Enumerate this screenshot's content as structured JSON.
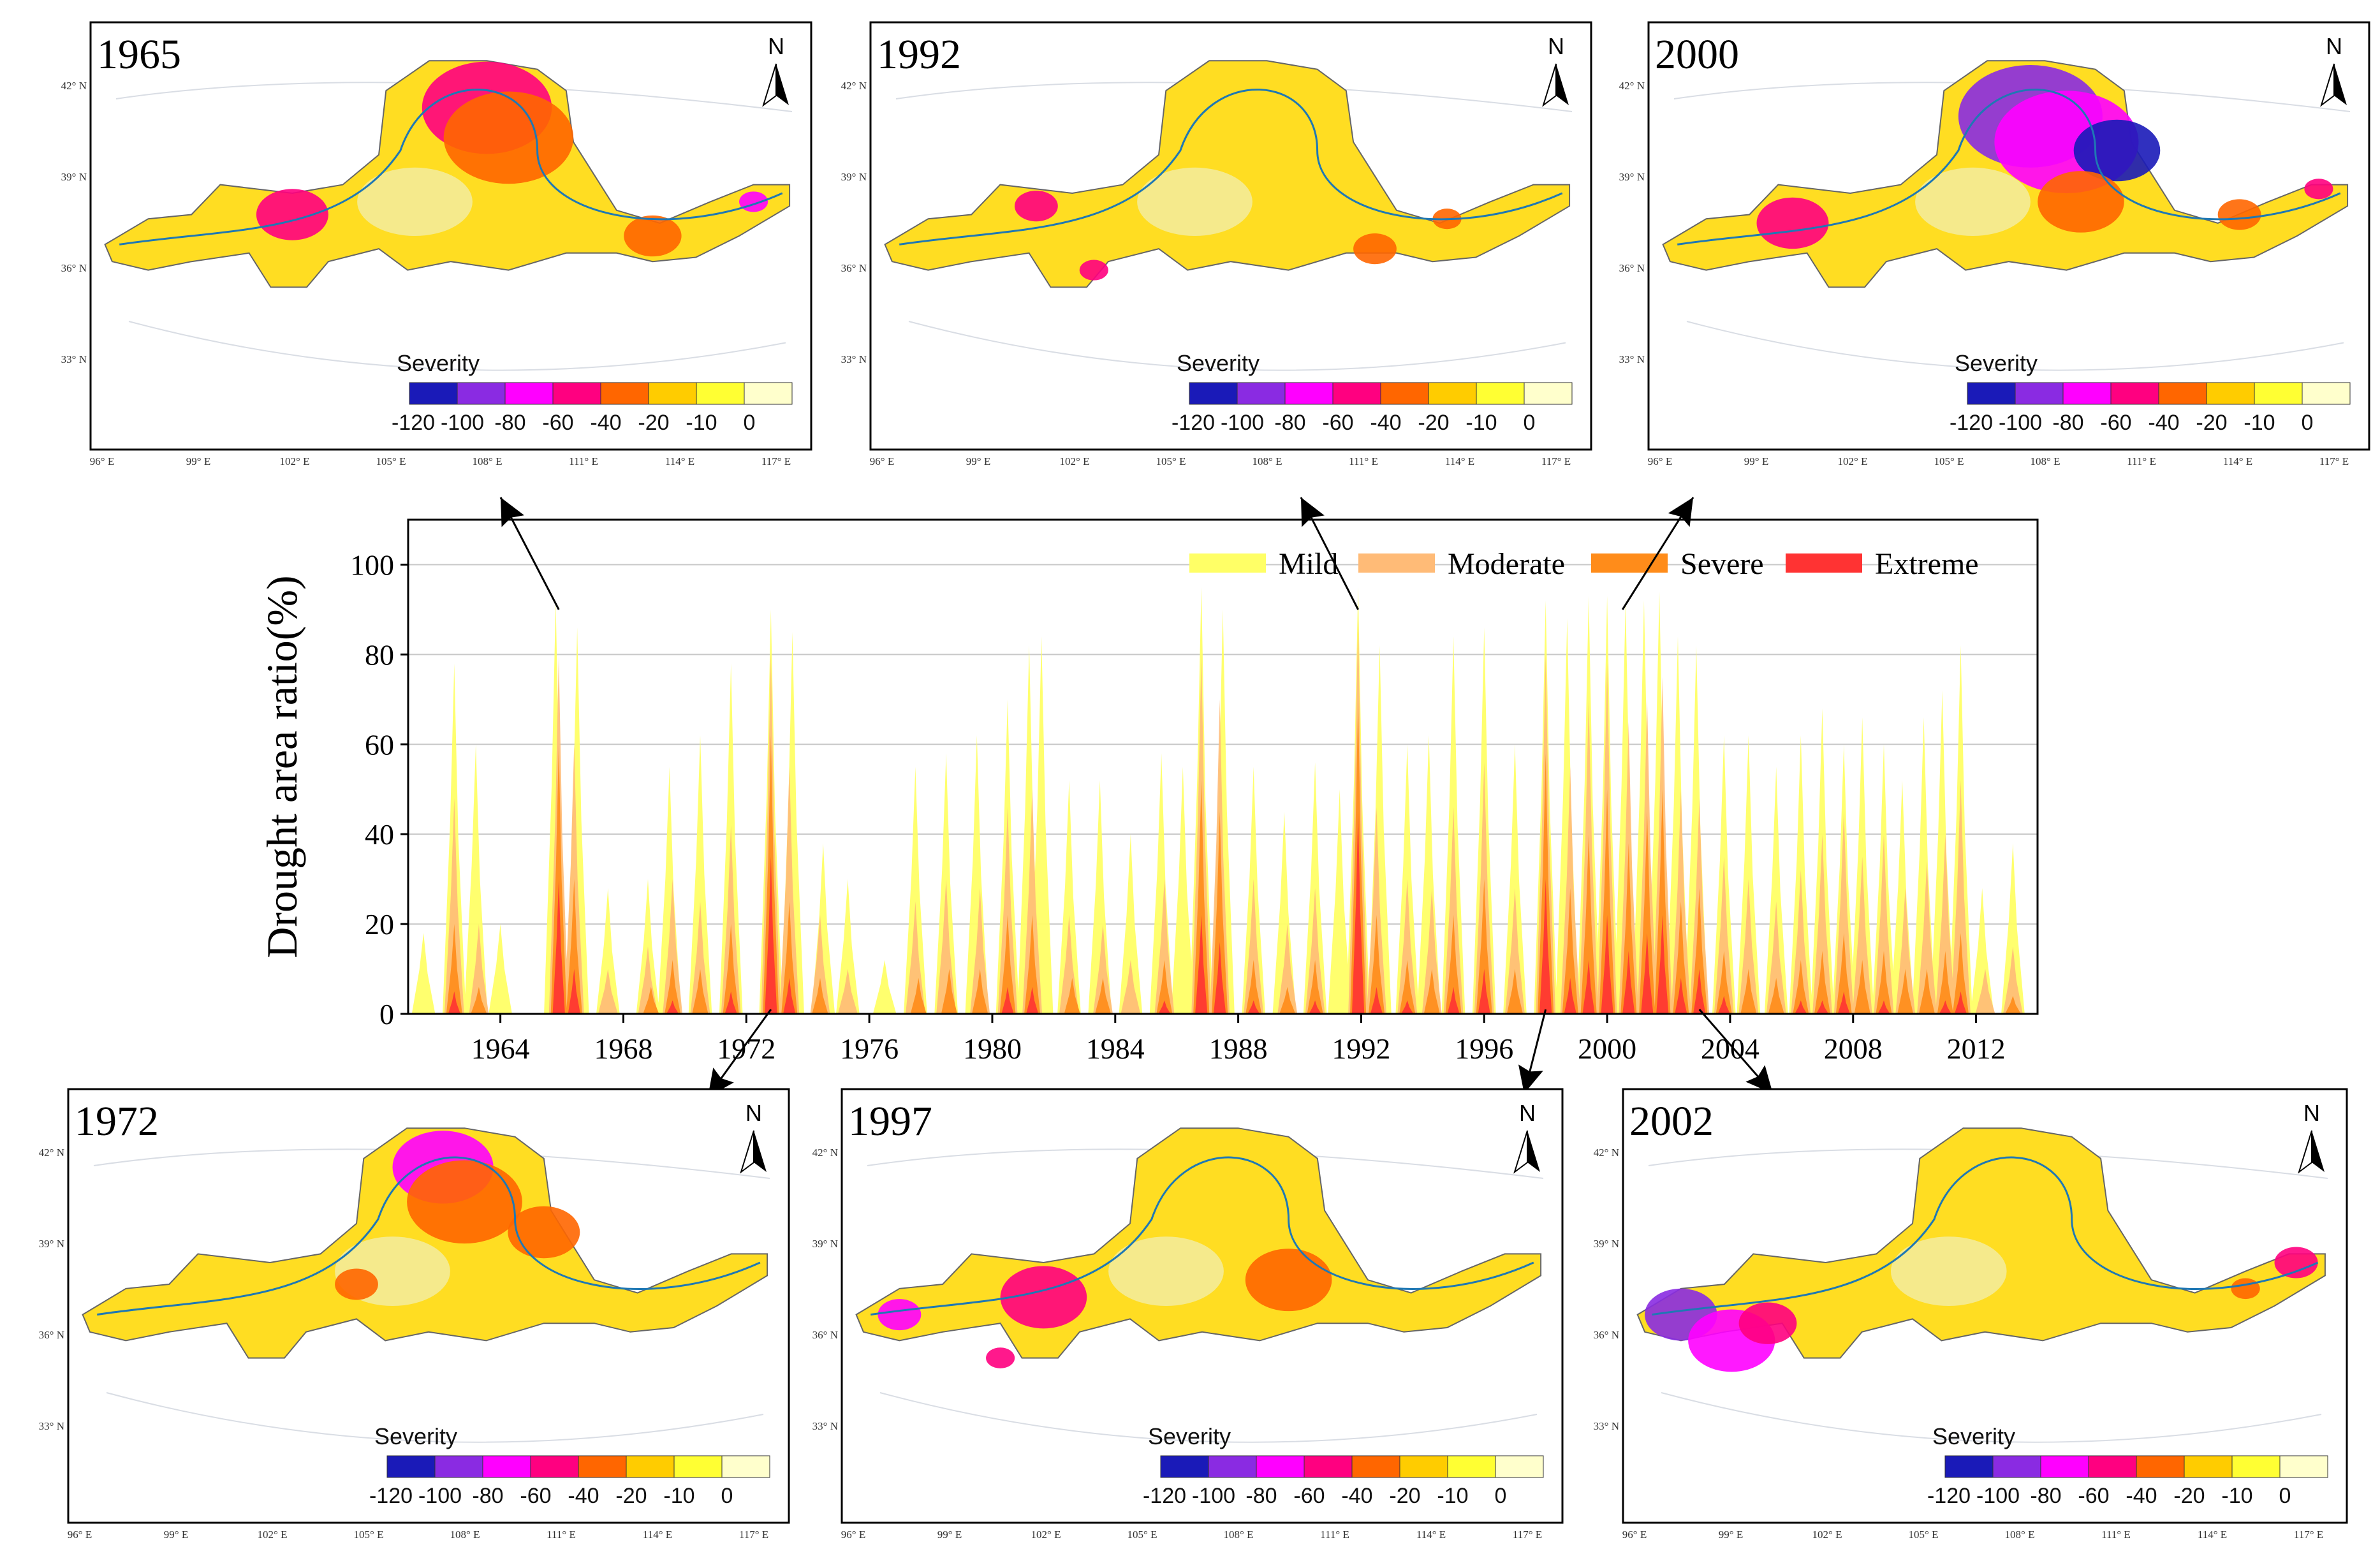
{
  "chart_data": {
    "type": "area",
    "title": "",
    "xlabel": "",
    "ylabel": "Drought area ratio(%)",
    "xlim": [
      1961,
      2014
    ],
    "ylim": [
      0,
      110
    ],
    "y_ticks": [
      "0",
      "20",
      "40",
      "60",
      "80",
      "100"
    ],
    "x_ticks": [
      "1964",
      "1968",
      "1972",
      "1976",
      "1980",
      "1984",
      "1988",
      "1992",
      "1996",
      "2000",
      "2004",
      "2008",
      "2012"
    ],
    "grid": "horizontal",
    "legend_position": "top-right",
    "series": [
      {
        "name": "Mild",
        "color": "#ffff66",
        "peaks": [
          [
            1961.5,
            18
          ],
          [
            1962.5,
            78
          ],
          [
            1963.2,
            60
          ],
          [
            1964.0,
            20
          ],
          [
            1965.8,
            92
          ],
          [
            1966.5,
            86
          ],
          [
            1967.5,
            28
          ],
          [
            1968.8,
            30
          ],
          [
            1969.5,
            55
          ],
          [
            1970.5,
            62
          ],
          [
            1971.5,
            78
          ],
          [
            1972.8,
            90
          ],
          [
            1973.5,
            85
          ],
          [
            1974.5,
            38
          ],
          [
            1975.3,
            30
          ],
          [
            1976.5,
            12
          ],
          [
            1977.5,
            55
          ],
          [
            1978.5,
            58
          ],
          [
            1979.5,
            62
          ],
          [
            1980.5,
            70
          ],
          [
            1981.2,
            82
          ],
          [
            1981.6,
            84
          ],
          [
            1982.5,
            52
          ],
          [
            1983.5,
            52
          ],
          [
            1984.5,
            40
          ],
          [
            1985.5,
            58
          ],
          [
            1986.2,
            55
          ],
          [
            1986.8,
            95
          ],
          [
            1987.5,
            90
          ],
          [
            1988.5,
            55
          ],
          [
            1989.5,
            45
          ],
          [
            1990.5,
            56
          ],
          [
            1991.3,
            50
          ],
          [
            1991.9,
            95
          ],
          [
            1992.6,
            82
          ],
          [
            1993.5,
            60
          ],
          [
            1994.2,
            62
          ],
          [
            1995.0,
            84
          ],
          [
            1996.0,
            86
          ],
          [
            1997.0,
            60
          ],
          [
            1998.0,
            92
          ],
          [
            1998.7,
            88
          ],
          [
            1999.4,
            93
          ],
          [
            2000.0,
            93
          ],
          [
            2000.6,
            92
          ],
          [
            2001.2,
            92
          ],
          [
            2001.7,
            94
          ],
          [
            2002.3,
            84
          ],
          [
            2002.9,
            82
          ],
          [
            2003.8,
            62
          ],
          [
            2004.6,
            62
          ],
          [
            2005.5,
            55
          ],
          [
            2006.3,
            62
          ],
          [
            2007.0,
            68
          ],
          [
            2007.7,
            60
          ],
          [
            2008.3,
            66
          ],
          [
            2009.0,
            60
          ],
          [
            2009.6,
            52
          ],
          [
            2010.3,
            66
          ],
          [
            2010.9,
            72
          ],
          [
            2011.5,
            82
          ],
          [
            2012.2,
            28
          ],
          [
            2013.2,
            38
          ]
        ]
      },
      {
        "name": "Moderate",
        "color": "#ffbb77",
        "peaks": [
          [
            1962.5,
            48
          ],
          [
            1963.3,
            20
          ],
          [
            1965.9,
            80
          ],
          [
            1966.4,
            60
          ],
          [
            1967.5,
            10
          ],
          [
            1968.8,
            15
          ],
          [
            1969.6,
            30
          ],
          [
            1970.5,
            25
          ],
          [
            1971.5,
            42
          ],
          [
            1972.8,
            80
          ],
          [
            1973.4,
            55
          ],
          [
            1974.4,
            22
          ],
          [
            1975.3,
            10
          ],
          [
            1977.5,
            25
          ],
          [
            1978.5,
            30
          ],
          [
            1979.6,
            28
          ],
          [
            1980.5,
            46
          ],
          [
            1981.3,
            50
          ],
          [
            1982.5,
            22
          ],
          [
            1983.6,
            20
          ],
          [
            1984.5,
            12
          ],
          [
            1985.6,
            30
          ],
          [
            1986.8,
            80
          ],
          [
            1987.4,
            70
          ],
          [
            1988.5,
            30
          ],
          [
            1989.6,
            20
          ],
          [
            1990.5,
            28
          ],
          [
            1991.9,
            88
          ],
          [
            1992.5,
            46
          ],
          [
            1993.5,
            30
          ],
          [
            1994.3,
            28
          ],
          [
            1995.0,
            46
          ],
          [
            1996.0,
            56
          ],
          [
            1997.0,
            28
          ],
          [
            1998.0,
            80
          ],
          [
            1998.8,
            55
          ],
          [
            1999.4,
            70
          ],
          [
            2000.0,
            78
          ],
          [
            2000.7,
            65
          ],
          [
            2001.3,
            70
          ],
          [
            2001.8,
            75
          ],
          [
            2002.4,
            50
          ],
          [
            2003.0,
            48
          ],
          [
            2003.8,
            35
          ],
          [
            2004.6,
            30
          ],
          [
            2005.5,
            25
          ],
          [
            2006.3,
            32
          ],
          [
            2007.0,
            40
          ],
          [
            2007.7,
            45
          ],
          [
            2008.3,
            35
          ],
          [
            2009.0,
            40
          ],
          [
            2009.7,
            28
          ],
          [
            2010.4,
            34
          ],
          [
            2011.0,
            40
          ],
          [
            2011.5,
            52
          ],
          [
            2012.3,
            10
          ],
          [
            2013.2,
            15
          ]
        ]
      },
      {
        "name": "Severe",
        "color": "#ff8c1a",
        "peaks": [
          [
            1962.5,
            20
          ],
          [
            1963.3,
            6
          ],
          [
            1965.9,
            60
          ],
          [
            1966.4,
            30
          ],
          [
            1968.9,
            6
          ],
          [
            1969.6,
            12
          ],
          [
            1970.5,
            10
          ],
          [
            1971.5,
            20
          ],
          [
            1972.8,
            62
          ],
          [
            1973.4,
            25
          ],
          [
            1974.4,
            8
          ],
          [
            1977.6,
            8
          ],
          [
            1978.6,
            10
          ],
          [
            1979.6,
            10
          ],
          [
            1980.5,
            22
          ],
          [
            1981.3,
            22
          ],
          [
            1982.6,
            8
          ],
          [
            1983.6,
            8
          ],
          [
            1985.6,
            12
          ],
          [
            1986.8,
            52
          ],
          [
            1987.4,
            45
          ],
          [
            1988.5,
            12
          ],
          [
            1989.6,
            6
          ],
          [
            1990.5,
            12
          ],
          [
            1991.9,
            70
          ],
          [
            1992.5,
            22
          ],
          [
            1993.5,
            12
          ],
          [
            1994.3,
            10
          ],
          [
            1995.0,
            22
          ],
          [
            1996.0,
            30
          ],
          [
            1997.0,
            10
          ],
          [
            1998.0,
            58
          ],
          [
            1998.8,
            28
          ],
          [
            1999.4,
            40
          ],
          [
            2000.0,
            50
          ],
          [
            2000.7,
            38
          ],
          [
            2001.3,
            45
          ],
          [
            2001.8,
            50
          ],
          [
            2002.4,
            25
          ],
          [
            2003.0,
            28
          ],
          [
            2003.8,
            14
          ],
          [
            2004.6,
            10
          ],
          [
            2005.5,
            8
          ],
          [
            2006.3,
            12
          ],
          [
            2007.0,
            14
          ],
          [
            2007.7,
            18
          ],
          [
            2008.3,
            12
          ],
          [
            2009.0,
            14
          ],
          [
            2009.7,
            10
          ],
          [
            2010.4,
            10
          ],
          [
            2011.0,
            14
          ],
          [
            2011.5,
            18
          ],
          [
            2013.2,
            4
          ]
        ]
      },
      {
        "name": "Extreme",
        "color": "#ff3333",
        "peaks": [
          [
            1962.5,
            5
          ],
          [
            1965.9,
            30
          ],
          [
            1966.4,
            10
          ],
          [
            1969.6,
            3
          ],
          [
            1971.5,
            5
          ],
          [
            1972.8,
            35
          ],
          [
            1973.4,
            8
          ],
          [
            1980.5,
            6
          ],
          [
            1981.3,
            6
          ],
          [
            1985.6,
            3
          ],
          [
            1986.8,
            22
          ],
          [
            1987.4,
            16
          ],
          [
            1988.5,
            3
          ],
          [
            1990.5,
            3
          ],
          [
            1991.9,
            45
          ],
          [
            1992.5,
            6
          ],
          [
            1993.5,
            3
          ],
          [
            1995.0,
            6
          ],
          [
            1996.0,
            10
          ],
          [
            1998.0,
            30
          ],
          [
            1998.8,
            8
          ],
          [
            1999.4,
            12
          ],
          [
            2000.0,
            22
          ],
          [
            2000.7,
            14
          ],
          [
            2001.3,
            18
          ],
          [
            2001.8,
            22
          ],
          [
            2002.4,
            8
          ],
          [
            2003.0,
            10
          ],
          [
            2003.8,
            4
          ],
          [
            2006.3,
            3
          ],
          [
            2007.0,
            3
          ],
          [
            2007.7,
            5
          ],
          [
            2009.0,
            3
          ],
          [
            2011.0,
            3
          ],
          [
            2011.5,
            5
          ]
        ]
      }
    ]
  },
  "maps": [
    {
      "id": "1965",
      "title": "1965",
      "pointer_year": 1965.9
    },
    {
      "id": "1992",
      "title": "1992",
      "pointer_year": 1991.9
    },
    {
      "id": "2000",
      "title": "2000",
      "pointer_year": 2000.5
    },
    {
      "id": "1972",
      "title": "1972",
      "pointer_year": 1972.8
    },
    {
      "id": "1997",
      "title": "1997",
      "pointer_year": 1998.0
    },
    {
      "id": "2002",
      "title": "2002",
      "pointer_year": 2003.0
    }
  ],
  "map_axes": {
    "lat_labels": [
      "42° N",
      "39° N",
      "36° N",
      "33° N"
    ],
    "lon_labels": [
      "96° E",
      "99° E",
      "102° E",
      "105° E",
      "108° E",
      "111° E",
      "114° E",
      "117° E"
    ],
    "north_label": "N"
  },
  "severity_legend": {
    "title": "Severity",
    "ticks": [
      "-120",
      "-100",
      "-80",
      "-60",
      "-40",
      "-20",
      "-10",
      "0"
    ],
    "colors": [
      "#1a1ab8",
      "#8a2be2",
      "#ff00ff",
      "#ff0080",
      "#ff6600",
      "#ffcc00",
      "#ffff33",
      "#ffffcc"
    ]
  }
}
